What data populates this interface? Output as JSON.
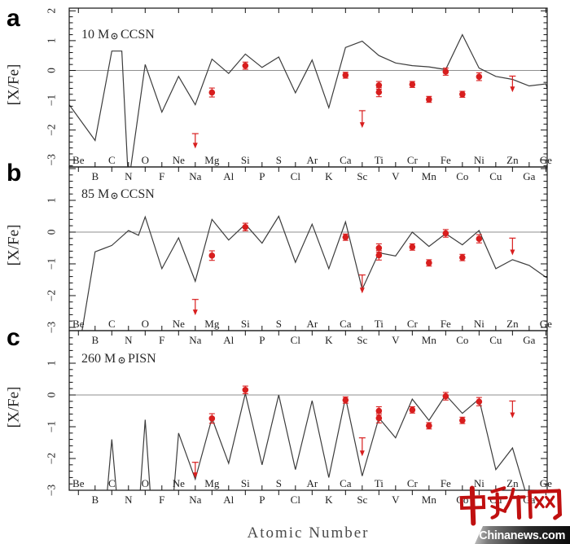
{
  "figure": {
    "type": "scientific-multipanel-plot",
    "xlabel": "Atomic Number",
    "ylabel": "[X/Fe]"
  },
  "watermark": {
    "logo_text": "中新网",
    "site": "Chinanews.com",
    "logo_color": "#c01010"
  },
  "chart_data": {
    "type": "line",
    "xlabel": "Atomic Number",
    "ylabel": "[X/Fe]",
    "grid": false,
    "x_range_atomic_number": [
      4,
      32
    ],
    "ylim_per_panel": [
      2.1,
      -3.25
    ],
    "elements_even_row": [
      [
        "Be",
        4
      ],
      [
        "C",
        6
      ],
      [
        "O",
        8
      ],
      [
        "Ne",
        10
      ],
      [
        "Mg",
        12
      ],
      [
        "Si",
        14
      ],
      [
        "S",
        16
      ],
      [
        "Ar",
        18
      ],
      [
        "Ca",
        20
      ],
      [
        "Ti",
        22
      ],
      [
        "Cr",
        24
      ],
      [
        "Fe",
        26
      ],
      [
        "Ni",
        28
      ],
      [
        "Zn",
        30
      ],
      [
        "Ge",
        32
      ]
    ],
    "elements_odd_row": [
      [
        "B",
        5
      ],
      [
        "N",
        7
      ],
      [
        "F",
        9
      ],
      [
        "Na",
        11
      ],
      [
        "Al",
        13
      ],
      [
        "P",
        15
      ],
      [
        "Cl",
        17
      ],
      [
        "K",
        19
      ],
      [
        "Sc",
        21
      ],
      [
        "V",
        23
      ],
      [
        "Mn",
        25
      ],
      [
        "Co",
        27
      ],
      [
        "Cu",
        29
      ],
      [
        "Ga",
        31
      ]
    ],
    "panels": [
      {
        "letter": "a",
        "title": "10 M☉ CCSN",
        "title_pre": "10 M",
        "title_post": "CCSN",
        "yticks": [
          "2",
          "1",
          "0",
          "−1",
          "−2",
          "−3"
        ],
        "model_points": [
          [
            3.45,
            -1.15
          ],
          [
            5,
            -2.35
          ],
          [
            6,
            0.65
          ],
          [
            6.6,
            0.65
          ],
          [
            7,
            -3.8
          ],
          [
            8,
            0.2
          ],
          [
            9,
            -1.4
          ],
          [
            10,
            -0.2
          ],
          [
            11,
            -1.15
          ],
          [
            12,
            0.38
          ],
          [
            13,
            -0.1
          ],
          [
            14,
            0.55
          ],
          [
            15,
            0.1
          ],
          [
            16,
            0.45
          ],
          [
            17,
            -0.75
          ],
          [
            18,
            0.35
          ],
          [
            19,
            -1.25
          ],
          [
            20,
            0.77
          ],
          [
            21,
            0.98
          ],
          [
            22,
            0.5
          ],
          [
            23,
            0.25
          ],
          [
            24,
            0.16
          ],
          [
            25,
            0.12
          ],
          [
            26,
            0.03
          ],
          [
            27,
            1.2
          ],
          [
            28,
            0.08
          ],
          [
            29,
            -0.2
          ],
          [
            30,
            -0.3
          ],
          [
            31,
            -0.52
          ],
          [
            32,
            -0.45
          ],
          [
            32.08,
            -0.6
          ]
        ]
      },
      {
        "letter": "b",
        "title": "85 M☉ CCSN",
        "title_pre": "85 M",
        "title_post": "CCSN",
        "yticks": [
          "1",
          "0",
          "−1",
          "−2",
          "−3"
        ],
        "model_points": [
          [
            4,
            -3.8
          ],
          [
            5,
            -0.62
          ],
          [
            6,
            -0.42
          ],
          [
            7,
            0.05
          ],
          [
            7.6,
            -0.1
          ],
          [
            8,
            0.48
          ],
          [
            9,
            -1.15
          ],
          [
            10,
            -0.18
          ],
          [
            11,
            -1.55
          ],
          [
            12,
            0.4
          ],
          [
            13,
            -0.25
          ],
          [
            14,
            0.25
          ],
          [
            15,
            -0.35
          ],
          [
            16,
            0.5
          ],
          [
            17,
            -0.95
          ],
          [
            18,
            0.25
          ],
          [
            19,
            -1.15
          ],
          [
            20,
            0.32
          ],
          [
            21,
            -1.8
          ],
          [
            22,
            -0.65
          ],
          [
            23,
            -0.75
          ],
          [
            24,
            0
          ],
          [
            25,
            -0.45
          ],
          [
            26,
            -0.05
          ],
          [
            27,
            -0.4
          ],
          [
            28,
            0.05
          ],
          [
            29,
            -1.15
          ],
          [
            30,
            -0.87
          ],
          [
            31,
            -1.05
          ],
          [
            32,
            -1.42
          ],
          [
            32.08,
            -1.42
          ]
        ]
      },
      {
        "letter": "c",
        "title": "260 M☉ PISN",
        "title_pre": "260 M",
        "title_post": "PISN",
        "yticks": [
          "1",
          "0",
          "−1",
          "−2",
          "−3"
        ],
        "model_points": [
          [
            4,
            -3.8
          ],
          [
            5.6,
            -3.8
          ],
          [
            6,
            -1.4
          ],
          [
            6.4,
            -3.8
          ],
          [
            7.6,
            -3.8
          ],
          [
            8,
            -0.78
          ],
          [
            8.4,
            -3.8
          ],
          [
            9.6,
            -3.8
          ],
          [
            10,
            -1.2
          ],
          [
            11,
            -2.65
          ],
          [
            12,
            -0.73
          ],
          [
            13,
            -2.15
          ],
          [
            14,
            0.05
          ],
          [
            15,
            -2.2
          ],
          [
            16,
            0
          ],
          [
            17,
            -2.35
          ],
          [
            18,
            -0.18
          ],
          [
            19,
            -2.6
          ],
          [
            20,
            -0.08
          ],
          [
            21,
            -2.55
          ],
          [
            22,
            -0.72
          ],
          [
            23,
            -1.35
          ],
          [
            24,
            -0.13
          ],
          [
            25,
            -0.8
          ],
          [
            26,
            0
          ],
          [
            27,
            -0.58
          ],
          [
            28,
            -0.13
          ],
          [
            29,
            -2.35
          ],
          [
            30,
            -1.67
          ],
          [
            31.2,
            -3.8
          ]
        ]
      }
    ],
    "observations": {
      "color": "#d81e1e",
      "note": "same observed-star data points repeated on every panel",
      "points": [
        {
          "el": "Mg",
          "z": 12,
          "y": -0.74,
          "err": 0.15
        },
        {
          "el": "Si",
          "z": 14,
          "y": 0.16,
          "err": 0.12
        },
        {
          "el": "Ca",
          "z": 20,
          "y": -0.16,
          "err": 0.1
        },
        {
          "el": "Ti",
          "z": 22,
          "y": -0.5,
          "err": 0.13
        },
        {
          "el": "Ti",
          "z": 22,
          "y": -0.73,
          "err": 0.15
        },
        {
          "el": "Cr",
          "z": 24,
          "y": -0.47,
          "err": 0.1
        },
        {
          "el": "Mn",
          "z": 25,
          "y": -0.97,
          "err": 0.1
        },
        {
          "el": "Fe",
          "z": 26,
          "y": -0.04,
          "err": 0.12
        },
        {
          "el": "Co",
          "z": 27,
          "y": -0.8,
          "err": 0.1
        },
        {
          "el": "Ni",
          "z": 28,
          "y": -0.21,
          "err": 0.13
        }
      ],
      "upper_limits": [
        {
          "el": "Na",
          "z": 11,
          "y": -2.12,
          "arrow_to": -2.62
        },
        {
          "el": "Sc",
          "z": 21,
          "y": -1.35,
          "arrow_to": -1.93
        },
        {
          "el": "Zn",
          "z": 30,
          "y": -0.19,
          "arrow_to": -0.73
        }
      ]
    }
  }
}
